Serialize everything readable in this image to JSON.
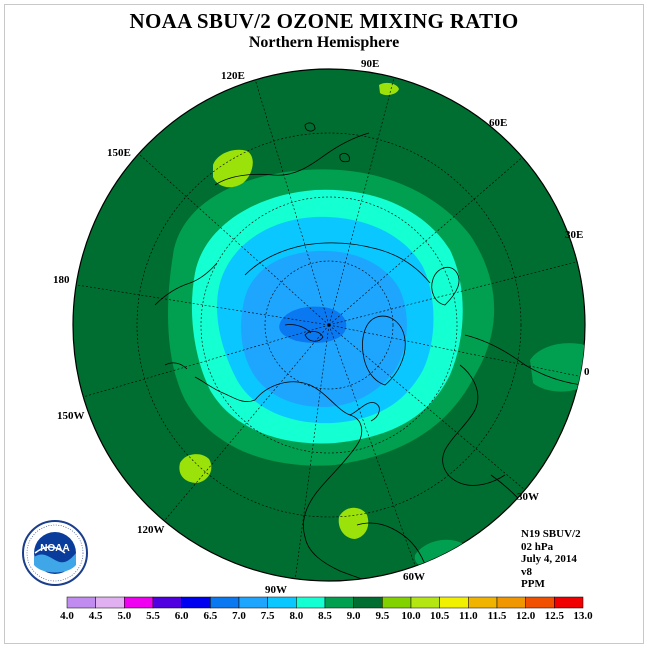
{
  "title": "NOAA SBUV/2 OZONE MIXING RATIO",
  "subtitle": "Northern Hemisphere",
  "longitude_labels": {
    "e90": "90E",
    "e120": "120E",
    "e60": "60E",
    "e150": "150E",
    "e30": "30E",
    "d180": "180",
    "d0": "0",
    "w150": "150W",
    "w30": "30W",
    "w120": "120W",
    "w60": "60W",
    "w90": "90W"
  },
  "info": {
    "instrument": "N19 SBUV/2",
    "level": "02 hPa",
    "date": "July 4, 2014",
    "version": "v8",
    "units": "PPM"
  },
  "logo": {
    "text": "NOAA",
    "ring_text": "NATIONAL OCEANIC AND ATMOSPHERIC ADMINISTRATION · U.S. DEPARTMENT OF COMMERCE"
  },
  "colorbar": {
    "ticks": [
      "4.0",
      "4.5",
      "5.0",
      "5.5",
      "6.0",
      "6.5",
      "7.0",
      "7.5",
      "8.0",
      "8.5",
      "9.0",
      "9.5",
      "10.0",
      "10.5",
      "11.0",
      "11.5",
      "12.0",
      "12.5",
      "13.0"
    ],
    "colors": [
      "#c08cf0",
      "#e0b0f0",
      "#f000f0",
      "#5000e0",
      "#0000f0",
      "#0a78f0",
      "#1ea6ff",
      "#0ac8ff",
      "#14ffd2",
      "#00a050",
      "#006e30",
      "#82d200",
      "#b4e614",
      "#f0f000",
      "#f0b400",
      "#f09600",
      "#f05000",
      "#f00000",
      "#8c5a3c"
    ]
  },
  "palette": {
    "ocean_bg": "#1a7a32",
    "v8_5": "#00a050",
    "v8_0": "#14ffd2",
    "v7_5": "#0ac8ff",
    "v7_0": "#1ea6ff",
    "v6_5": "#0a78f0",
    "v9_5": "#9be10a"
  }
}
